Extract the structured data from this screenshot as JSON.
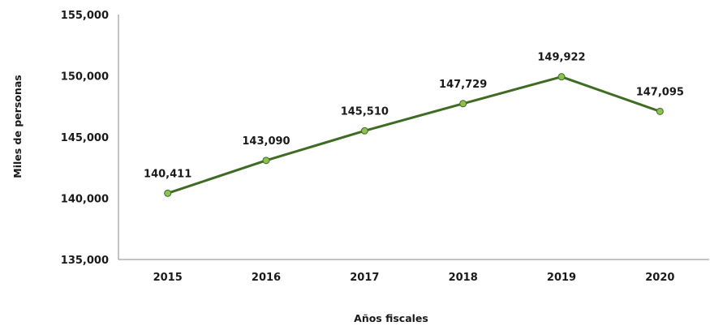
{
  "chart_data": {
    "type": "line",
    "title": "",
    "xlabel": "Años fiscales",
    "ylabel": "Miles de personas",
    "x": [
      "2015",
      "2016",
      "2017",
      "2018",
      "2019",
      "2020"
    ],
    "series": [
      {
        "values": [
          140411,
          143090,
          145510,
          147729,
          149922,
          147095
        ],
        "labels": [
          "140,411",
          "143,090",
          "145,510",
          "147,729",
          "149,922",
          "147,095"
        ],
        "line_color": "#3f6b23",
        "marker_color": "#8cc152"
      }
    ],
    "ylim": [
      135000,
      155000
    ],
    "yticks": [
      135000,
      140000,
      145000,
      150000,
      155000
    ],
    "ytick_labels": [
      "135,000",
      "140,000",
      "145,000",
      "150,000",
      "155,000"
    ],
    "grid": false,
    "legend": "none"
  }
}
